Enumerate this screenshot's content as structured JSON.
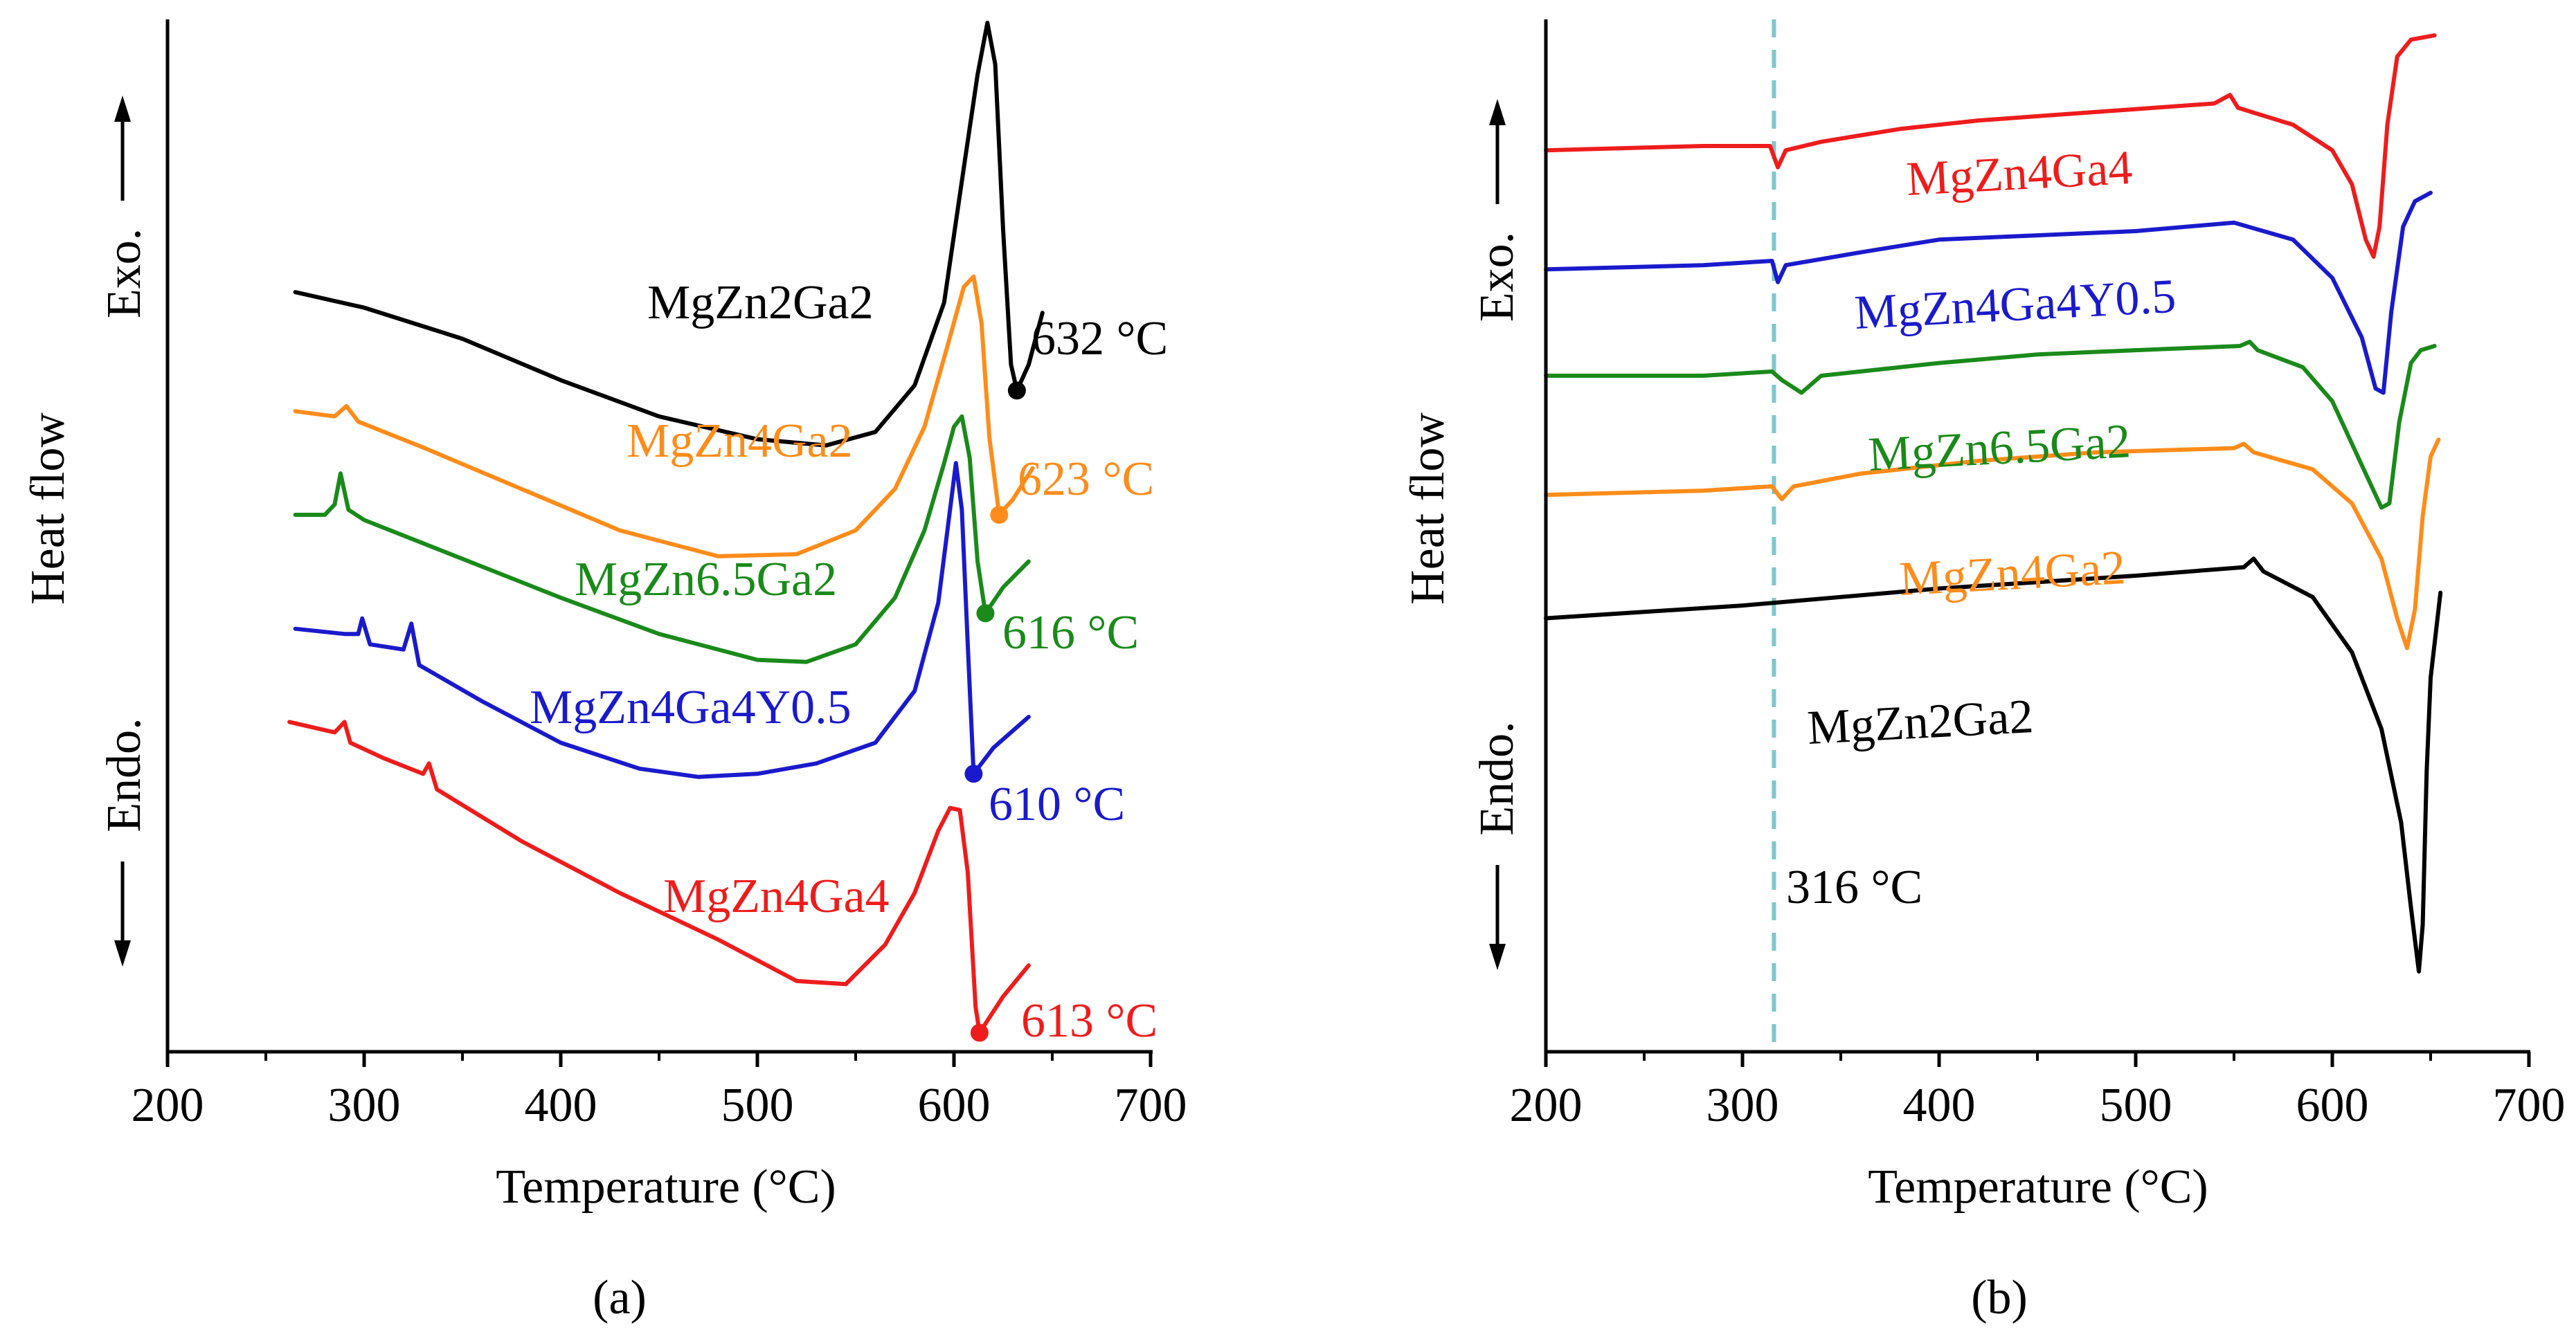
{
  "colors": {
    "MgZn2Ga2": "#000000",
    "MgZn4Ga2": "#ff8c1a",
    "MgZn6.5Ga2": "#1a8a1a",
    "MgZn4Ga4Y0.5": "#1a1acc",
    "MgZn4Ga4": "#ee1c1c",
    "dashed_line": "#7ac8cf"
  },
  "chart_data": [
    {
      "panel": "(a)",
      "type": "line",
      "xlabel": "Temperature (°C)",
      "ylabel": "Heat flow",
      "y_arrow_up": "Exo.",
      "y_arrow_down": "Endo.",
      "xlim": [
        200,
        700
      ],
      "xticks": [
        "200",
        "300",
        "400",
        "500",
        "600",
        "700"
      ],
      "yticks": [],
      "series": [
        {
          "name": "MgZn2Ga2",
          "label": "MgZn2Ga2",
          "temp_label": "632 °C",
          "marker_x": 632,
          "points": [
            [
              265,
              5.7
            ],
            [
              300,
              5.55
            ],
            [
              350,
              5.25
            ],
            [
              400,
              4.85
            ],
            [
              450,
              4.5
            ],
            [
              500,
              4.28
            ],
            [
              535,
              4.22
            ],
            [
              560,
              4.35
            ],
            [
              580,
              4.8
            ],
            [
              595,
              5.6
            ],
            [
              605,
              6.9
            ],
            [
              612,
              7.8
            ],
            [
              617,
              8.3
            ],
            [
              621,
              7.9
            ],
            [
              625,
              6.3
            ],
            [
              629,
              5.0
            ],
            [
              632,
              4.75
            ],
            [
              638,
              5.0
            ],
            [
              645,
              5.5
            ]
          ]
        },
        {
          "name": "MgZn4Ga2",
          "label": "MgZn4Ga2",
          "temp_label": "623 °C",
          "marker_x": 623,
          "points": [
            [
              265,
              4.55
            ],
            [
              285,
              4.5
            ],
            [
              291,
              4.6
            ],
            [
              297,
              4.45
            ],
            [
              330,
              4.2
            ],
            [
              380,
              3.8
            ],
            [
              430,
              3.4
            ],
            [
              480,
              3.15
            ],
            [
              520,
              3.17
            ],
            [
              550,
              3.4
            ],
            [
              570,
              3.8
            ],
            [
              585,
              4.4
            ],
            [
              597,
              5.2
            ],
            [
              605,
              5.75
            ],
            [
              610,
              5.85
            ],
            [
              614,
              5.4
            ],
            [
              618,
              4.3
            ],
            [
              623,
              3.55
            ],
            [
              630,
              3.7
            ],
            [
              640,
              4.0
            ]
          ]
        },
        {
          "name": "MgZn6.5Ga2",
          "label": "MgZn6.5Ga2",
          "temp_label": "616 °C",
          "marker_x": 616,
          "points": [
            [
              265,
              3.55
            ],
            [
              280,
              3.55
            ],
            [
              285,
              3.65
            ],
            [
              288,
              3.95
            ],
            [
              292,
              3.6
            ],
            [
              300,
              3.5
            ],
            [
              340,
              3.2
            ],
            [
              400,
              2.75
            ],
            [
              450,
              2.4
            ],
            [
              500,
              2.15
            ],
            [
              525,
              2.13
            ],
            [
              550,
              2.3
            ],
            [
              570,
              2.75
            ],
            [
              585,
              3.4
            ],
            [
              595,
              4.05
            ],
            [
              600,
              4.4
            ],
            [
              604,
              4.5
            ],
            [
              608,
              4.1
            ],
            [
              612,
              3.1
            ],
            [
              616,
              2.6
            ],
            [
              625,
              2.85
            ],
            [
              638,
              3.1
            ]
          ]
        },
        {
          "name": "MgZn4Ga4Y0.5",
          "label": "MgZn4Ga4Y0.5",
          "temp_label": "610 °C",
          "marker_x": 610,
          "points": [
            [
              265,
              2.45
            ],
            [
              290,
              2.4
            ],
            [
              297,
              2.4
            ],
            [
              299,
              2.55
            ],
            [
              303,
              2.3
            ],
            [
              320,
              2.25
            ],
            [
              324,
              2.5
            ],
            [
              328,
              2.1
            ],
            [
              360,
              1.75
            ],
            [
              400,
              1.35
            ],
            [
              440,
              1.1
            ],
            [
              470,
              1.02
            ],
            [
              500,
              1.05
            ],
            [
              530,
              1.15
            ],
            [
              560,
              1.35
            ],
            [
              580,
              1.85
            ],
            [
              592,
              2.7
            ],
            [
              598,
              3.6
            ],
            [
              601,
              4.05
            ],
            [
              604,
              3.6
            ],
            [
              607,
              2.3
            ],
            [
              610,
              1.05
            ],
            [
              620,
              1.3
            ],
            [
              638,
              1.6
            ]
          ]
        },
        {
          "name": "MgZn4Ga4",
          "label": "MgZn4Ga4",
          "temp_label": "613 °C",
          "marker_x": 613,
          "points": [
            [
              262,
              1.55
            ],
            [
              285,
              1.45
            ],
            [
              290,
              1.55
            ],
            [
              293,
              1.35
            ],
            [
              310,
              1.2
            ],
            [
              330,
              1.05
            ],
            [
              333,
              1.15
            ],
            [
              337,
              0.9
            ],
            [
              380,
              0.4
            ],
            [
              430,
              -0.1
            ],
            [
              480,
              -0.55
            ],
            [
              520,
              -0.95
            ],
            [
              545,
              -0.98
            ],
            [
              565,
              -0.6
            ],
            [
              580,
              -0.1
            ],
            [
              592,
              0.5
            ],
            [
              598,
              0.72
            ],
            [
              603,
              0.7
            ],
            [
              607,
              0.1
            ],
            [
              611,
              -1.2
            ],
            [
              613,
              -1.45
            ],
            [
              625,
              -1.1
            ],
            [
              638,
              -0.8
            ]
          ]
        }
      ]
    },
    {
      "panel": "(b)",
      "type": "line",
      "xlabel": "Temperature (°C)",
      "ylabel": "Heat flow",
      "y_arrow_up": "Exo.",
      "y_arrow_down": "Endo.",
      "xlim": [
        200,
        700
      ],
      "xticks": [
        "200",
        "300",
        "400",
        "500",
        "600",
        "700"
      ],
      "yticks": [],
      "vline": {
        "x": 316,
        "label": "316 °C"
      },
      "series": [
        {
          "name": "MgZn4Ga4",
          "label": "MgZn4Ga4",
          "points": [
            [
              200,
              7.1
            ],
            [
              280,
              7.15
            ],
            [
              314,
              7.15
            ],
            [
              318,
              6.9
            ],
            [
              322,
              7.1
            ],
            [
              340,
              7.2
            ],
            [
              380,
              7.35
            ],
            [
              420,
              7.45
            ],
            [
              480,
              7.55
            ],
            [
              540,
              7.65
            ],
            [
              548,
              7.75
            ],
            [
              552,
              7.6
            ],
            [
              580,
              7.4
            ],
            [
              600,
              7.1
            ],
            [
              610,
              6.7
            ],
            [
              617,
              6.05
            ],
            [
              621,
              5.85
            ],
            [
              624,
              6.2
            ],
            [
              628,
              7.4
            ],
            [
              633,
              8.2
            ],
            [
              640,
              8.4
            ],
            [
              652,
              8.45
            ]
          ]
        },
        {
          "name": "MgZn4Ga4Y0.5",
          "label": "MgZn4Ga4Y0.5",
          "points": [
            [
              200,
              5.7
            ],
            [
              280,
              5.75
            ],
            [
              315,
              5.8
            ],
            [
              318,
              5.55
            ],
            [
              322,
              5.75
            ],
            [
              360,
              5.9
            ],
            [
              400,
              6.05
            ],
            [
              450,
              6.1
            ],
            [
              500,
              6.15
            ],
            [
              550,
              6.25
            ],
            [
              580,
              6.05
            ],
            [
              600,
              5.6
            ],
            [
              615,
              4.9
            ],
            [
              622,
              4.3
            ],
            [
              626,
              4.25
            ],
            [
              630,
              5.2
            ],
            [
              636,
              6.2
            ],
            [
              642,
              6.5
            ],
            [
              650,
              6.6
            ]
          ]
        },
        {
          "name": "MgZn6.5Ga2",
          "label": "MgZn6.5Ga2",
          "points": [
            [
              200,
              4.45
            ],
            [
              280,
              4.45
            ],
            [
              315,
              4.5
            ],
            [
              320,
              4.4
            ],
            [
              330,
              4.25
            ],
            [
              340,
              4.45
            ],
            [
              400,
              4.6
            ],
            [
              450,
              4.7
            ],
            [
              500,
              4.75
            ],
            [
              553,
              4.8
            ],
            [
              558,
              4.85
            ],
            [
              562,
              4.75
            ],
            [
              585,
              4.55
            ],
            [
              600,
              4.15
            ],
            [
              615,
              3.4
            ],
            [
              625,
              2.9
            ],
            [
              629,
              2.95
            ],
            [
              634,
              3.9
            ],
            [
              640,
              4.6
            ],
            [
              645,
              4.75
            ],
            [
              652,
              4.8
            ]
          ]
        },
        {
          "name": "MgZn4Ga2",
          "label": "MgZn4Ga2",
          "points": [
            [
              200,
              3.05
            ],
            [
              280,
              3.1
            ],
            [
              315,
              3.15
            ],
            [
              320,
              3.0
            ],
            [
              326,
              3.15
            ],
            [
              360,
              3.3
            ],
            [
              420,
              3.45
            ],
            [
              480,
              3.55
            ],
            [
              550,
              3.6
            ],
            [
              555,
              3.65
            ],
            [
              560,
              3.55
            ],
            [
              590,
              3.35
            ],
            [
              610,
              2.95
            ],
            [
              625,
              2.3
            ],
            [
              633,
              1.6
            ],
            [
              638,
              1.25
            ],
            [
              642,
              1.7
            ],
            [
              646,
              2.8
            ],
            [
              650,
              3.5
            ],
            [
              654,
              3.7
            ]
          ]
        },
        {
          "name": "MgZn2Ga2",
          "label": "MgZn2Ga2",
          "points": [
            [
              200,
              1.6
            ],
            [
              300,
              1.75
            ],
            [
              400,
              1.95
            ],
            [
              500,
              2.1
            ],
            [
              555,
              2.2
            ],
            [
              560,
              2.3
            ],
            [
              565,
              2.15
            ],
            [
              590,
              1.85
            ],
            [
              610,
              1.2
            ],
            [
              625,
              0.3
            ],
            [
              635,
              -0.8
            ],
            [
              640,
              -1.8
            ],
            [
              644,
              -2.55
            ],
            [
              646,
              -2.0
            ],
            [
              648,
              -0.2
            ],
            [
              650,
              0.9
            ],
            [
              655,
              1.9
            ]
          ]
        }
      ]
    }
  ],
  "captions": {
    "a": "(a)",
    "b": "(b)"
  }
}
